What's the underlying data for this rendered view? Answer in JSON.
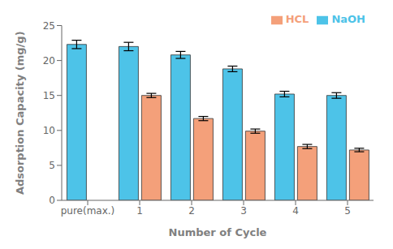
{
  "chart_data": {
    "type": "bar",
    "categories": [
      "pure(max.)",
      "1",
      "2",
      "3",
      "4",
      "5"
    ],
    "series": [
      {
        "name": "NaOH",
        "color": "#4DC3E8",
        "values": [
          22.3,
          22.0,
          20.8,
          18.8,
          15.2,
          15.0
        ],
        "errors": [
          0.6,
          0.6,
          0.5,
          0.4,
          0.4,
          0.4
        ]
      },
      {
        "name": "HCL",
        "color": "#F4A07A",
        "values": [
          null,
          15.0,
          11.7,
          9.9,
          7.7,
          7.2
        ],
        "errors": [
          null,
          0.3,
          0.3,
          0.3,
          0.3,
          0.25
        ]
      }
    ],
    "xlabel": "Number of Cycle",
    "ylabel": "Adsorption Capacity (mg/g)",
    "ylim": [
      0,
      25
    ],
    "yticks": [
      0,
      5,
      10,
      15,
      20,
      25
    ],
    "grid": false,
    "legend": "upper right"
  }
}
